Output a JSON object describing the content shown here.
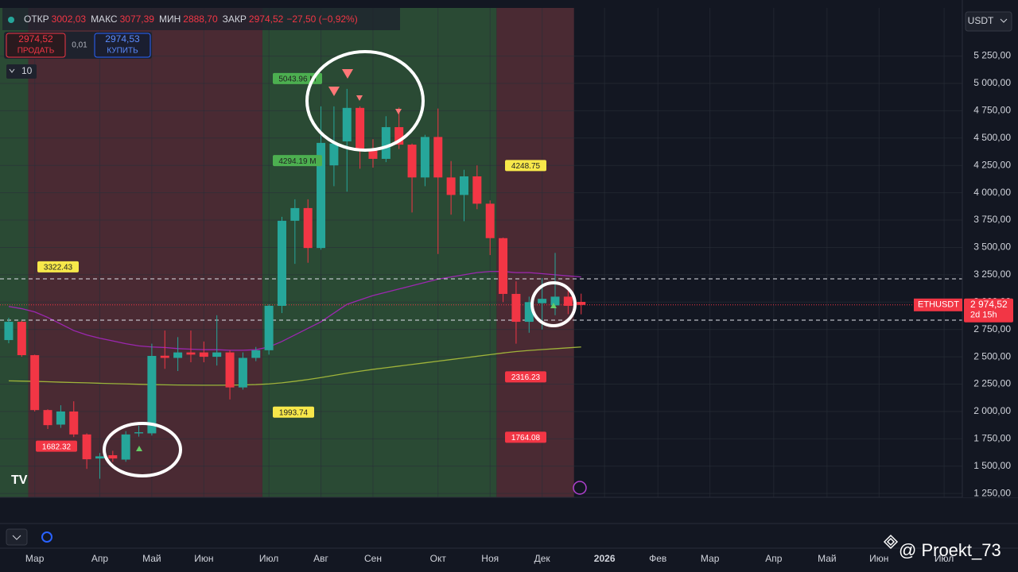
{
  "chart_data": {
    "type": "candlestick",
    "symbol": "ETHUSDT",
    "countdown": "2d 15h",
    "up_color": "#26a69a",
    "down_color": "#f23645",
    "open": [
      2653,
      2820,
      2515,
      2013,
      1880,
      2000,
      1790,
      1570,
      1600,
      1560,
      1800,
      1800,
      2510,
      2490,
      2540,
      2540,
      2500,
      2540,
      2220,
      2490,
      2560,
      2966,
      3744,
      3860,
      3495,
      4250,
      4470,
      4776,
      4400,
      4310,
      4600,
      4440,
      4140,
      4510,
      4140,
      3980,
      4150,
      3900,
      3585,
      3075,
      2820,
      2990,
      2970,
      3050,
      3002.03
    ],
    "high": [
      2857,
      2830,
      2520,
      2020,
      2057,
      2093,
      1800,
      1620,
      1640,
      1820,
      1870,
      2620,
      2740,
      2680,
      2740,
      2640,
      2880,
      2560,
      2540,
      2590,
      2980,
      3780,
      3940,
      3940,
      4790,
      4790,
      4950,
      4790,
      4490,
      4700,
      4780,
      4450,
      4530,
      4770,
      4290,
      4210,
      4250,
      3930,
      3590,
      3190,
      3050,
      3220,
      3450,
      3110,
      3077.39
    ],
    "low": [
      2624,
      2500,
      2000,
      1840,
      1850,
      1766,
      1475,
      1385,
      1540,
      1540,
      1770,
      1780,
      2390,
      2370,
      2450,
      2450,
      2420,
      2110,
      2200,
      2460,
      2520,
      2900,
      3350,
      3360,
      3480,
      4060,
      4010,
      4220,
      4230,
      4280,
      4400,
      3820,
      4060,
      3440,
      3800,
      3740,
      3850,
      3430,
      3000,
      2620,
      2720,
      2750,
      2880,
      2890,
      2888.7
    ],
    "close": [
      2820,
      2515,
      2013,
      1875,
      2000,
      1790,
      1563,
      1590,
      1570,
      1790,
      1810,
      2508,
      2490,
      2540,
      2520,
      2500,
      2540,
      2220,
      2490,
      2560,
      2966,
      3744,
      3860,
      3495,
      4456,
      4450,
      4776,
      4400,
      4310,
      4600,
      4440,
      4140,
      4510,
      4140,
      3980,
      4150,
      3900,
      3585,
      3075,
      2820,
      3000,
      3030,
      3050,
      2966,
      2974.52
    ],
    "overlays": [
      {
        "color": "#9c27b0",
        "values": [
          2960,
          2940,
          2910,
          2860,
          2800,
          2740,
          2700,
          2670,
          2645,
          2620,
          2600,
          2590,
          2585,
          2575,
          2570,
          2565,
          2565,
          2560,
          2560,
          2565,
          2590,
          2640,
          2700,
          2760,
          2820,
          2900,
          2980,
          3020,
          3060,
          3090,
          3120,
          3150,
          3180,
          3210,
          3230,
          3250,
          3270,
          3280,
          3280,
          3270,
          3270,
          3260,
          3250,
          3240,
          3230
        ]
      },
      {
        "color": "#9fb33a",
        "values": [
          2280,
          2278,
          2275,
          2272,
          2268,
          2265,
          2262,
          2258,
          2255,
          2252,
          2249,
          2246,
          2244,
          2242,
          2241,
          2240,
          2240,
          2241,
          2243,
          2246,
          2252,
          2262,
          2276,
          2292,
          2310,
          2330,
          2350,
          2368,
          2385,
          2400,
          2415,
          2430,
          2445,
          2460,
          2475,
          2490,
          2505,
          2520,
          2535,
          2548,
          2558,
          2566,
          2574,
          2582,
          2590
        ]
      }
    ],
    "levels": [
      3213,
      2835
    ],
    "last_price": {
      "value": 2974.52,
      "label": "2 974,52"
    },
    "annotations": [
      {
        "value": 3322.43,
        "color": "#f7e84a"
      },
      {
        "value": 1682.32,
        "color": "#f23645"
      },
      {
        "value": 1993.74,
        "color": "#f7e84a"
      },
      {
        "value": 5043.96,
        "label": "5043.96 M",
        "color": "#4caf50"
      },
      {
        "value": 4294.19,
        "label": "4294.19 M",
        "color": "#4caf50"
      },
      {
        "value": 4248.75,
        "color": "#f7e84a"
      },
      {
        "value": 2316.23,
        "color": "#f23645"
      },
      {
        "value": 1764.08,
        "color": "#f23645"
      }
    ],
    "xlim": [
      -0.67,
      73.3
    ],
    "xticks": [
      {
        "value": 2,
        "label": "Мар"
      },
      {
        "value": 7,
        "label": "Апр"
      },
      {
        "value": 11,
        "label": "Май"
      },
      {
        "value": 15,
        "label": "Июн"
      },
      {
        "value": 20,
        "label": "Июл"
      },
      {
        "value": 24,
        "label": "Авг"
      },
      {
        "value": 28,
        "label": "Сен"
      },
      {
        "value": 33,
        "label": "Окт"
      },
      {
        "value": 37,
        "label": "Ноя"
      },
      {
        "value": 41,
        "label": "Дек"
      },
      {
        "value": 45.8,
        "label": "2026"
      },
      {
        "value": 49.9,
        "label": "Фев"
      },
      {
        "value": 53.9,
        "label": "Мар"
      },
      {
        "value": 58.8,
        "label": "Апр"
      },
      {
        "value": 62.9,
        "label": "Май"
      },
      {
        "value": 66.9,
        "label": "Июн"
      },
      {
        "value": 71.9,
        "label": "Июл"
      }
    ],
    "ylim": [
      1215,
      5690
    ],
    "yticks": [
      {
        "value": 1250,
        "label": "1 250,00"
      },
      {
        "value": 1500,
        "label": "1 500,00"
      },
      {
        "value": 1750,
        "label": "1 750,00"
      },
      {
        "value": 2000,
        "label": "2 000,00"
      },
      {
        "value": 2250,
        "label": "2 250,00"
      },
      {
        "value": 2500,
        "label": "2 500,00"
      },
      {
        "value": 2750,
        "label": "2 750,00"
      },
      {
        "value": 3000,
        "label": "3 000,00"
      },
      {
        "value": 3250,
        "label": "3 250,00"
      },
      {
        "value": 3500,
        "label": "3 500,00"
      },
      {
        "value": 3750,
        "label": "3 750,00"
      },
      {
        "value": 4000,
        "label": "4 000,00"
      },
      {
        "value": 4250,
        "label": "4 250,00"
      },
      {
        "value": 4500,
        "label": "4 500,00"
      },
      {
        "value": 4750,
        "label": "4 750,00"
      },
      {
        "value": 5000,
        "label": "5 000,00"
      },
      {
        "value": 5250,
        "label": "5 250,00"
      }
    ],
    "grid": true
  },
  "ui": {
    "ohlc": [
      {
        "label": "ОТКР",
        "value": "3002,03"
      },
      {
        "label": "МАКС",
        "value": "3077,39"
      },
      {
        "label": "МИН",
        "value": "2888,70"
      },
      {
        "label": "ЗАКР",
        "value": "2974,52"
      }
    ],
    "change": "−27,50 (−0,92%)",
    "sell": {
      "price": "2974,52",
      "label": "ПРОДАТЬ"
    },
    "spread": "0,01",
    "buy": {
      "price": "2974,53",
      "label": "КУПИТЬ"
    },
    "lots": "10",
    "currency": "USDT",
    "watermark": "@ Proekt_73"
  }
}
